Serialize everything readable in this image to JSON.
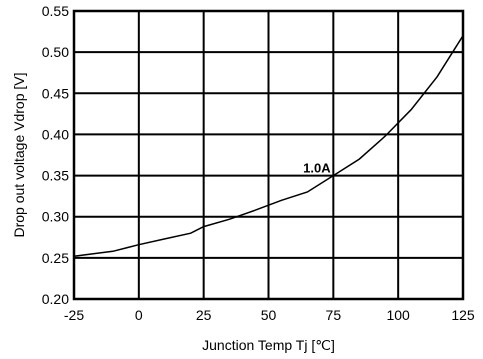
{
  "chart_data": {
    "type": "line",
    "title": "",
    "xlabel": "Junction Temp Tj [℃]",
    "ylabel": "Drop out voltage Vdrop [V]",
    "xlim": [
      -25,
      125
    ],
    "ylim": [
      0.2,
      0.55
    ],
    "xticks": [
      -25,
      0,
      25,
      50,
      75,
      100,
      125
    ],
    "yticks": [
      0.2,
      0.25,
      0.3,
      0.35,
      0.4,
      0.45,
      0.5,
      0.55
    ],
    "xtick_labels": [
      "-25",
      "0",
      "25",
      "50",
      "75",
      "100",
      "125"
    ],
    "ytick_labels": [
      "0.20",
      "0.25",
      "0.30",
      "0.35",
      "0.40",
      "0.45",
      "0.50",
      "0.55"
    ],
    "grid": true,
    "series": [
      {
        "name": "1.0A",
        "x": [
          -25,
          -10,
          0,
          10,
          20,
          25,
          35,
          45,
          55,
          65,
          75,
          85,
          95,
          105,
          115,
          125
        ],
        "y": [
          0.252,
          0.258,
          0.266,
          0.273,
          0.28,
          0.288,
          0.297,
          0.308,
          0.32,
          0.33,
          0.35,
          0.37,
          0.398,
          0.43,
          0.47,
          0.52
        ]
      }
    ],
    "annotations": [
      {
        "text": "1.0A",
        "x": 68,
        "y": 0.36
      }
    ],
    "line_color": "#000000"
  }
}
